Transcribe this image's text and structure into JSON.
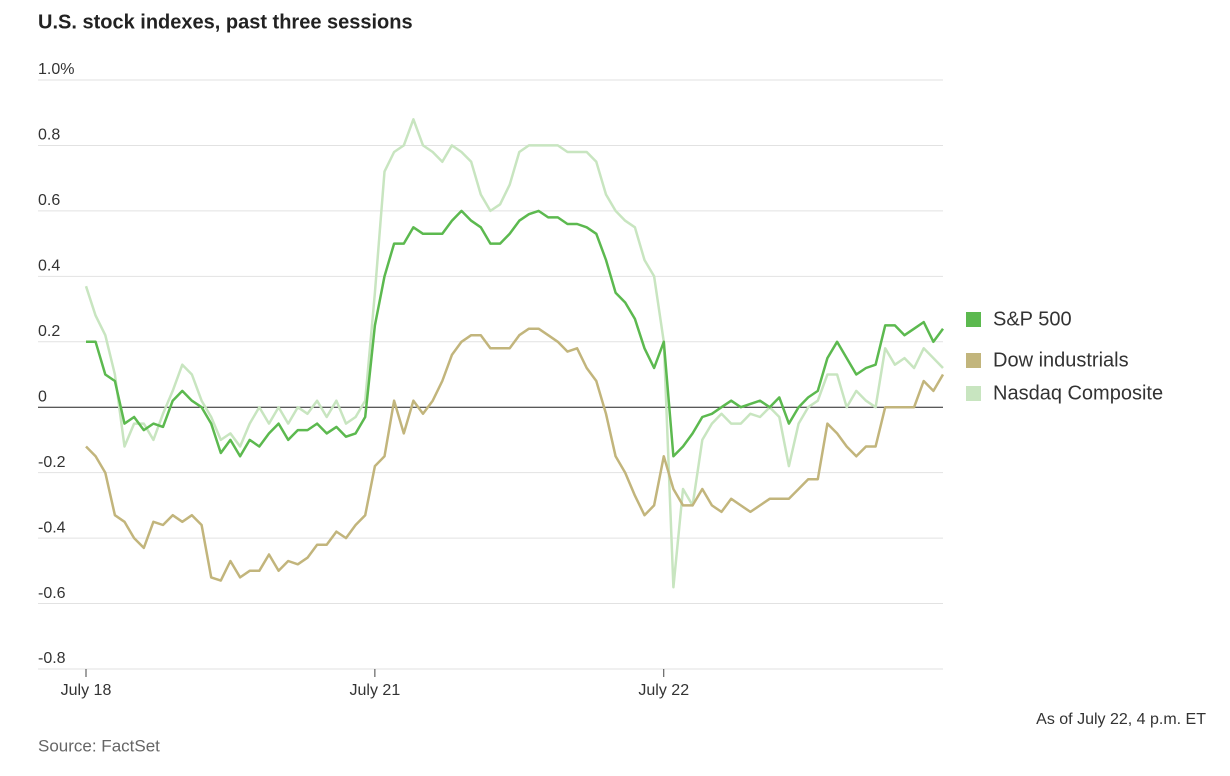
{
  "chart_data": {
    "type": "line",
    "title": "U.S. stock indexes, past three sessions",
    "note": "As of July 22, 4 p.m. ET",
    "source": "Source: FactSet",
    "categories": [
      "July 18",
      null,
      null,
      null,
      null,
      null,
      null,
      null,
      null,
      null,
      null,
      null,
      null,
      null,
      null,
      null,
      null,
      null,
      null,
      null,
      null,
      null,
      null,
      null,
      null,
      null,
      null,
      null,
      null,
      null,
      "July 21",
      null,
      null,
      null,
      null,
      null,
      null,
      null,
      null,
      null,
      null,
      null,
      null,
      null,
      null,
      null,
      null,
      null,
      null,
      null,
      null,
      null,
      null,
      null,
      null,
      null,
      null,
      null,
      null,
      null,
      "July 22",
      null,
      null,
      null,
      null,
      null,
      null,
      null,
      null,
      null,
      null,
      null,
      null,
      null,
      null,
      null,
      null,
      null,
      null,
      null,
      null,
      null,
      null,
      null,
      null,
      null,
      null,
      null,
      null,
      null
    ],
    "ylim": [
      -0.8,
      1.0
    ],
    "yticks": [
      {
        "value": 1.0,
        "label": "1.0%"
      },
      0.8,
      0.6,
      0.4,
      0.2,
      0,
      -0.2,
      -0.4,
      -0.6,
      -0.8
    ],
    "grid": true,
    "series": [
      {
        "name": "S&P 500",
        "color": "#5cb94f",
        "values": [
          0.2,
          0.2,
          0.1,
          0.08,
          -0.05,
          -0.03,
          -0.07,
          -0.05,
          -0.06,
          0.02,
          0.05,
          0.02,
          0,
          -0.05,
          -0.14,
          -0.1,
          -0.15,
          -0.1,
          -0.12,
          -0.08,
          -0.05,
          -0.1,
          -0.07,
          -0.07,
          -0.05,
          -0.08,
          -0.06,
          -0.09,
          -0.08,
          -0.03,
          0.25,
          0.4,
          0.5,
          0.5,
          0.55,
          0.53,
          0.53,
          0.53,
          0.57,
          0.6,
          0.57,
          0.55,
          0.5,
          0.5,
          0.53,
          0.57,
          0.59,
          0.6,
          0.58,
          0.58,
          0.56,
          0.56,
          0.55,
          0.53,
          0.45,
          0.35,
          0.32,
          0.27,
          0.18,
          0.12,
          0.2,
          -0.15,
          -0.12,
          -0.08,
          -0.03,
          -0.02,
          0,
          0.02,
          0,
          0.01,
          0.02,
          0,
          0.03,
          -0.05,
          0,
          0.03,
          0.05,
          0.15,
          0.2,
          0.15,
          0.1,
          0.12,
          0.13,
          0.25,
          0.25,
          0.22,
          0.24,
          0.26,
          0.2,
          0.24
        ]
      },
      {
        "name": "Dow industrials",
        "color": "#c2b57c",
        "values": [
          -0.12,
          -0.15,
          -0.2,
          -0.33,
          -0.35,
          -0.4,
          -0.43,
          -0.35,
          -0.36,
          -0.33,
          -0.35,
          -0.33,
          -0.36,
          -0.52,
          -0.53,
          -0.47,
          -0.52,
          -0.5,
          -0.5,
          -0.45,
          -0.5,
          -0.47,
          -0.48,
          -0.46,
          -0.42,
          -0.42,
          -0.38,
          -0.4,
          -0.36,
          -0.33,
          -0.18,
          -0.15,
          0.02,
          -0.08,
          0.02,
          -0.02,
          0.02,
          0.08,
          0.16,
          0.2,
          0.22,
          0.22,
          0.18,
          0.18,
          0.18,
          0.22,
          0.24,
          0.24,
          0.22,
          0.2,
          0.17,
          0.18,
          0.12,
          0.08,
          -0.02,
          -0.15,
          -0.2,
          -0.27,
          -0.33,
          -0.3,
          -0.15,
          -0.25,
          -0.3,
          -0.3,
          -0.25,
          -0.3,
          -0.32,
          -0.28,
          -0.3,
          -0.32,
          -0.3,
          -0.28,
          -0.28,
          -0.28,
          -0.25,
          -0.22,
          -0.22,
          -0.05,
          -0.08,
          -0.12,
          -0.15,
          -0.12,
          -0.12,
          0,
          0,
          0,
          0,
          0.08,
          0.05,
          0.1
        ]
      },
      {
        "name": "Nasdaq Composite",
        "color": "#c8e5c0",
        "values": [
          0.37,
          0.28,
          0.22,
          0.1,
          -0.12,
          -0.05,
          -0.05,
          -0.1,
          -0.02,
          0.05,
          0.13,
          0.1,
          0.02,
          -0.03,
          -0.1,
          -0.08,
          -0.12,
          -0.05,
          0,
          -0.05,
          0,
          -0.05,
          0,
          -0.02,
          0.02,
          -0.03,
          0.02,
          -0.05,
          -0.03,
          0.02,
          0.35,
          0.72,
          0.78,
          0.8,
          0.88,
          0.8,
          0.78,
          0.75,
          0.8,
          0.78,
          0.75,
          0.65,
          0.6,
          0.62,
          0.68,
          0.78,
          0.8,
          0.8,
          0.8,
          0.8,
          0.78,
          0.78,
          0.78,
          0.75,
          0.65,
          0.6,
          0.57,
          0.55,
          0.45,
          0.4,
          0.2,
          -0.55,
          -0.25,
          -0.3,
          -0.1,
          -0.05,
          -0.02,
          -0.05,
          -0.05,
          -0.02,
          -0.03,
          0,
          -0.03,
          -0.18,
          -0.05,
          0,
          0.02,
          0.1,
          0.1,
          0,
          0.05,
          0.02,
          0,
          0.18,
          0.13,
          0.15,
          0.12,
          0.18,
          0.15,
          0.12
        ]
      }
    ]
  }
}
